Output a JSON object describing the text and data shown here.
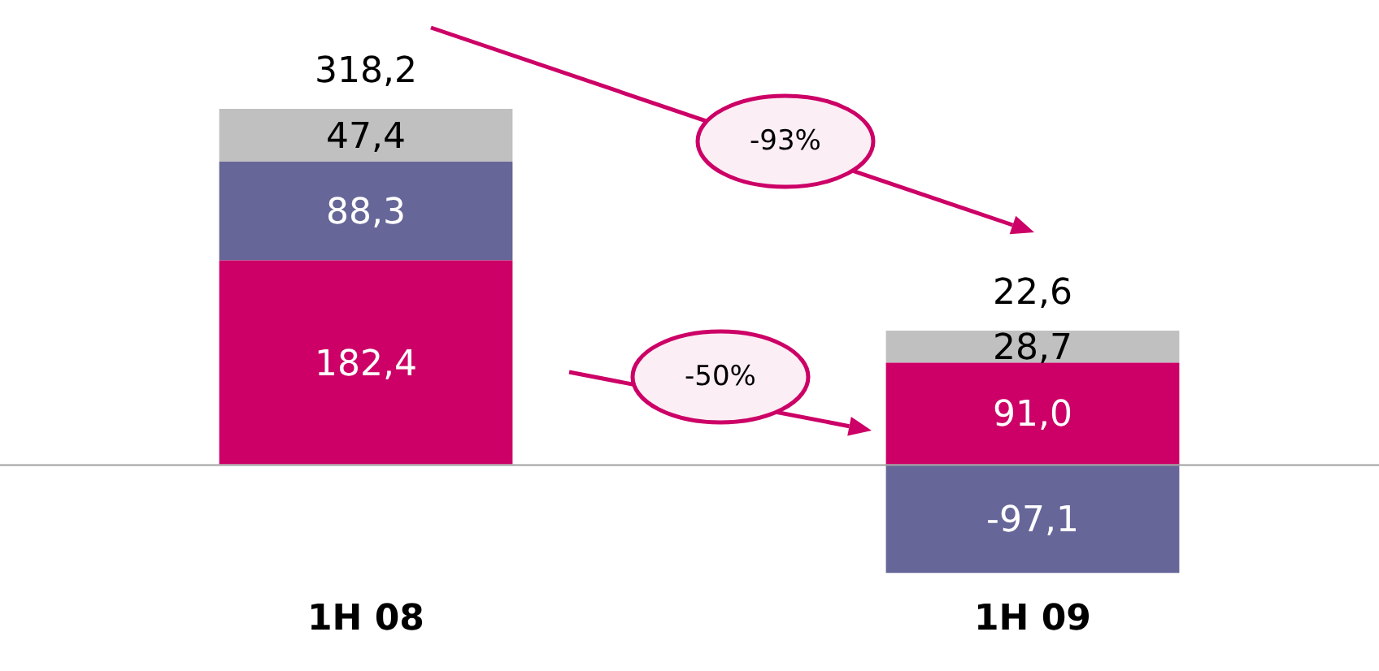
{
  "chart_data": {
    "type": "bar",
    "stacked": true,
    "categories": [
      "1H 08",
      "1H 09"
    ],
    "series": [
      {
        "color": "#cc0066",
        "values": [
          182.4,
          91.0
        ],
        "value_labels": [
          "182,4",
          "91,0"
        ]
      },
      {
        "color": "#666699",
        "values": [
          88.3,
          -97.1
        ],
        "value_labels": [
          "88,3",
          "-97,1"
        ]
      },
      {
        "color": "#c0c0c0",
        "values": [
          47.4,
          28.7
        ],
        "value_labels": [
          "47,4",
          "28,7"
        ]
      }
    ],
    "totals": [
      "318,2",
      "22,6"
    ],
    "grid": false,
    "legend": false,
    "annotations": [
      "-93%",
      "-50%"
    ]
  }
}
